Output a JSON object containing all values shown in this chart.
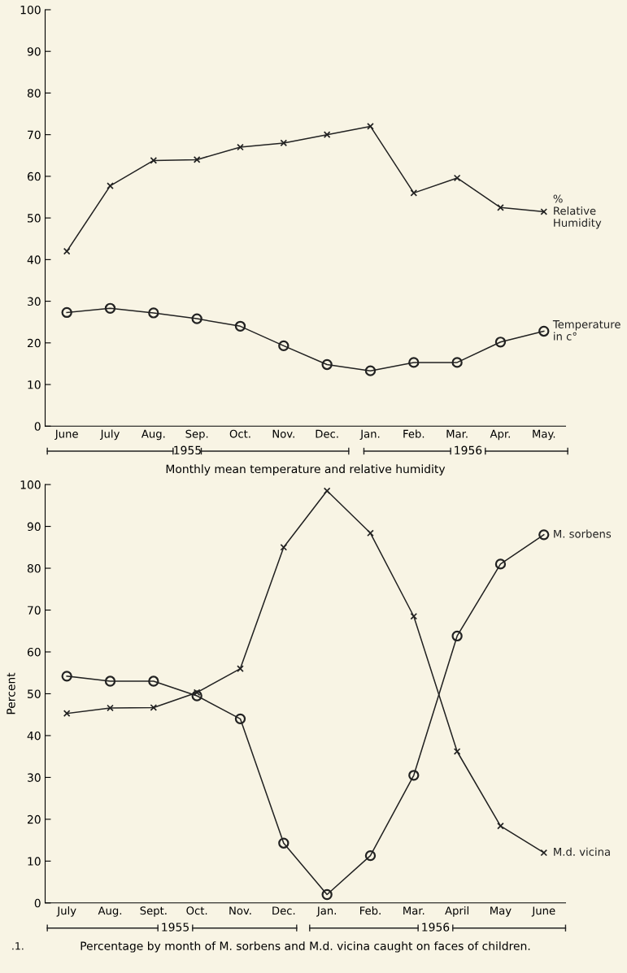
{
  "chart_data": [
    {
      "type": "line",
      "annotations": [
        "1955",
        "1956",
        "Monthly mean temperature and relative humidity"
      ],
      "categories": [
        "June",
        "July",
        "Aug.",
        "Sep.",
        "Oct.",
        "Nov.",
        "Dec.",
        "Jan.",
        "Feb.",
        "Mar.",
        "Apr.",
        "May."
      ],
      "ylim": [
        0,
        100
      ],
      "yticks": [
        0,
        10,
        20,
        30,
        40,
        50,
        60,
        70,
        80,
        90,
        100
      ],
      "grid": false,
      "legend": false,
      "line_style": "solid",
      "series": [
        {
          "name": "%\nRelative\nHumidity",
          "color": "#222222",
          "marker": "cross",
          "values": [
            42,
            57.7,
            63.8,
            64,
            67,
            68,
            70,
            72,
            56,
            59.6,
            52.5,
            51.5
          ]
        },
        {
          "name": "Temperature\nin c°",
          "color": "#222222",
          "marker": "circle",
          "values": [
            27.3,
            28.3,
            27.2,
            25.8,
            24,
            19.3,
            14.8,
            13.3,
            15.3,
            15.3,
            20.2,
            22.8
          ]
        }
      ]
    },
    {
      "type": "line",
      "ylabel": "Percent",
      "annotations": [
        "1955",
        "1956",
        "Percentage by month of M. sorbens and M.d. vicina caught on faces of children.",
        ".1."
      ],
      "categories": [
        "July",
        "Aug.",
        "Sept.",
        "Oct.",
        "Nov.",
        "Dec.",
        "Jan.",
        "Feb.",
        "Mar.",
        "April",
        "May",
        "June"
      ],
      "ylim": [
        0,
        100
      ],
      "yticks": [
        0,
        10,
        20,
        30,
        40,
        50,
        60,
        70,
        80,
        90,
        100
      ],
      "grid": false,
      "legend": false,
      "line_style": "solid",
      "series": [
        {
          "name": "M. sorbens",
          "color": "#222222",
          "marker": "circle",
          "values": [
            54.2,
            53,
            53,
            49.5,
            44,
            14.3,
            2,
            11.3,
            30.5,
            63.8,
            81,
            88
          ]
        },
        {
          "name": "M.d. vicina",
          "color": "#222222",
          "marker": "cross",
          "values": [
            45.3,
            46.6,
            46.7,
            50.3,
            56,
            85,
            98.5,
            88.4,
            68.5,
            36.2,
            18.4,
            12
          ]
        }
      ]
    }
  ]
}
